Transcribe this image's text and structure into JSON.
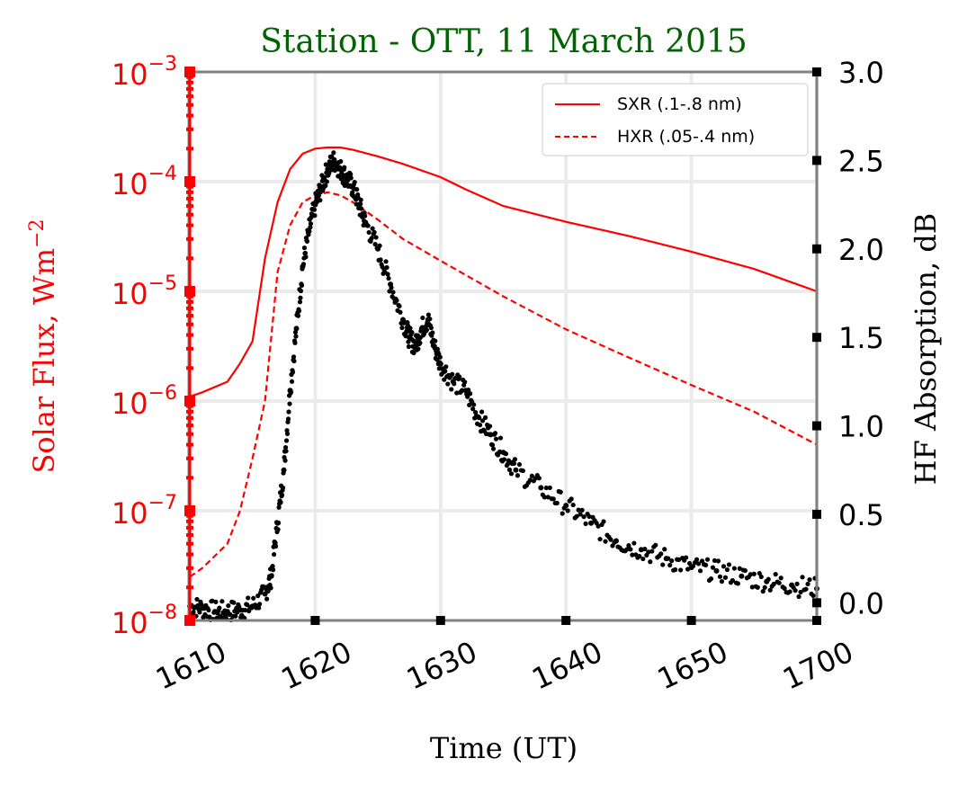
{
  "chart_data": {
    "type": "line",
    "title": "Station - OTT, 11 March 2015",
    "xlabel": "Time (UT)",
    "ylabel_left": "Solar Flux, Wm",
    "ylabel_left_sup": "−2",
    "ylabel_right": "HF Absorption, dB",
    "x_ticks": [
      0,
      10,
      20,
      30,
      40,
      50
    ],
    "x_tick_labels": [
      "1610",
      "1620",
      "1630",
      "1640",
      "1650",
      "1700"
    ],
    "xlim": [
      0,
      50
    ],
    "ylim_left_log10": [
      -8,
      -3
    ],
    "y_left_ticks_exp": [
      -8,
      -7,
      -6,
      -5,
      -4,
      -3
    ],
    "ylim_right": [
      -0.1,
      3.0
    ],
    "y_right_ticks": [
      0.0,
      0.5,
      1.0,
      1.5,
      2.0,
      2.5,
      3.0
    ],
    "y_right_tick_labels": [
      "0.0",
      "0.5",
      "1.0",
      "1.5",
      "2.0",
      "2.5",
      "3.0"
    ],
    "grid": true,
    "legend_position": "top-right",
    "series": [
      {
        "name": "SXR (.1-.8 nm)",
        "axis": "left",
        "style": "solid",
        "color": "#ff0000",
        "x": [
          0,
          1,
          3,
          4,
          5,
          6,
          7,
          8,
          9,
          10,
          11,
          12,
          13,
          15,
          17,
          20,
          22,
          25,
          30,
          35,
          40,
          45,
          50
        ],
        "y": [
          1.1e-06,
          1.2e-06,
          1.5e-06,
          2.2e-06,
          3.5e-06,
          2e-05,
          6.5e-05,
          0.00013,
          0.00018,
          0.0002,
          0.000205,
          0.000205,
          0.000195,
          0.00017,
          0.000145,
          0.00011,
          8.5e-05,
          6e-05,
          4.3e-05,
          3.2e-05,
          2.3e-05,
          1.6e-05,
          1e-05
        ]
      },
      {
        "name": "HXR (.05-.4 nm)",
        "axis": "left",
        "style": "dashed",
        "color": "#ff0000",
        "x": [
          0,
          1,
          3,
          4,
          5,
          6,
          7,
          8,
          9,
          10,
          11,
          12,
          13,
          15,
          17,
          20,
          25,
          30,
          35,
          40,
          45,
          50
        ],
        "y": [
          2.5e-08,
          3e-08,
          5e-08,
          1e-07,
          3e-07,
          1e-06,
          1.5e-05,
          4e-05,
          6.5e-05,
          7.5e-05,
          8e-05,
          7.5e-05,
          6.5e-05,
          4.5e-05,
          3e-05,
          1.9e-05,
          9e-06,
          4.5e-06,
          2.5e-06,
          1.4e-06,
          8e-07,
          4e-07
        ]
      },
      {
        "name": "HF Absorption",
        "axis": "right",
        "style": "scatter",
        "color": "#000000",
        "x": [
          0,
          1,
          2,
          3,
          4,
          5,
          6,
          6.5,
          7,
          7.5,
          8,
          8.5,
          9,
          9.5,
          10,
          10.5,
          11,
          11.5,
          12,
          12.5,
          13,
          13.5,
          14,
          15,
          16,
          17,
          17.5,
          18,
          18.5,
          19,
          19.5,
          20,
          21,
          22,
          23,
          24,
          25,
          26,
          28,
          30,
          32,
          34,
          36,
          38,
          40,
          42,
          44,
          46,
          48,
          50
        ],
        "y": [
          -0.02,
          -0.03,
          -0.05,
          -0.05,
          -0.04,
          -0.02,
          0.05,
          0.15,
          0.45,
          0.75,
          1.2,
          1.55,
          1.9,
          2.1,
          2.25,
          2.35,
          2.45,
          2.5,
          2.45,
          2.4,
          2.35,
          2.25,
          2.15,
          2.0,
          1.8,
          1.6,
          1.5,
          1.45,
          1.55,
          1.6,
          1.45,
          1.35,
          1.25,
          1.2,
          1.05,
          0.95,
          0.85,
          0.75,
          0.65,
          0.55,
          0.45,
          0.35,
          0.3,
          0.25,
          0.2,
          0.18,
          0.15,
          0.12,
          0.1,
          0.08
        ]
      }
    ]
  },
  "colors": {
    "left_axis": "#ff0000",
    "title": "#006400",
    "frame": "#808080",
    "grid": "#ebebeb"
  }
}
